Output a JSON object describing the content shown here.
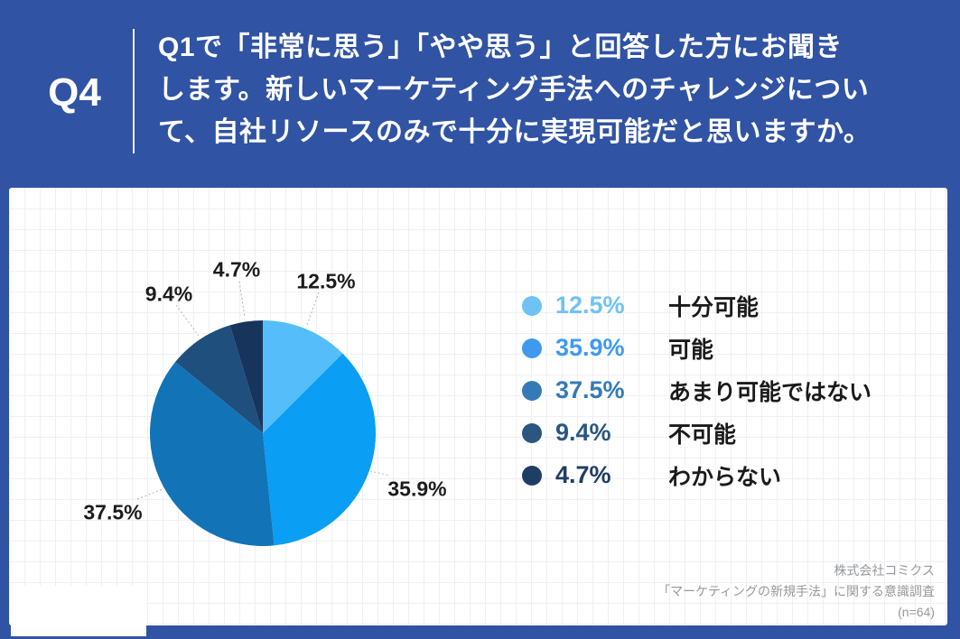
{
  "page": {
    "background_color": "#3053A3",
    "card_background": "#FFFFFF"
  },
  "header": {
    "question_number": "Q4",
    "question_lines": [
      "Q1で「非常に思う」「やや思う」と回答した方にお聞き",
      "します。新しいマーケティング手法へのチャレンジについ",
      "て、自社リソースのみで十分に実現可能だと思いますか。"
    ]
  },
  "chart_data": {
    "type": "pie",
    "start_angle_deg": 0,
    "direction": "clockwise",
    "total": 100,
    "slices": [
      {
        "label": "十分可能",
        "value": 12.5,
        "pct_label": "12.5%",
        "color": "#55BEFA",
        "legend_color": "#6FC3F4"
      },
      {
        "label": "可能",
        "value": 35.9,
        "pct_label": "35.9%",
        "color": "#0A9EF5",
        "legend_color": "#3F9AEF"
      },
      {
        "label": "あまり可能ではない",
        "value": 37.5,
        "pct_label": "37.5%",
        "color": "#1273B7",
        "legend_color": "#347AB6"
      },
      {
        "label": "不可能",
        "value": 9.4,
        "pct_label": "9.4%",
        "color": "#1E4F7D",
        "legend_color": "#2A5680"
      },
      {
        "label": "わからない",
        "value": 4.7,
        "pct_label": "4.7%",
        "color": "#17355C",
        "legend_color": "#203D64"
      }
    ]
  },
  "footer": {
    "lines": [
      "株式会社コミクス",
      "「マーケティングの新規手法」に関する意識調査",
      "(n=64)"
    ]
  }
}
